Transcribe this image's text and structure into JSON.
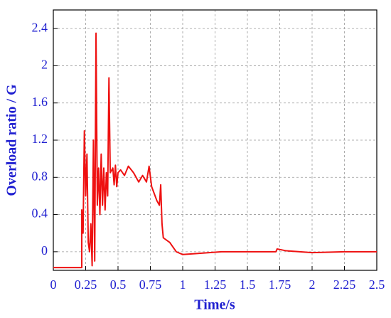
{
  "chart_data": {
    "type": "line",
    "color": "#ee1111",
    "x_label": "Time/s",
    "y_label": "Overload ratio / G",
    "x": [
      0,
      0.22,
      0.22,
      0.23,
      0.24,
      0.25,
      0.26,
      0.27,
      0.28,
      0.29,
      0.3,
      0.31,
      0.32,
      0.33,
      0.34,
      0.35,
      0.36,
      0.37,
      0.38,
      0.39,
      0.4,
      0.41,
      0.42,
      0.43,
      0.44,
      0.46,
      0.47,
      0.48,
      0.49,
      0.5,
      0.52,
      0.55,
      0.58,
      0.62,
      0.66,
      0.69,
      0.72,
      0.74,
      0.76,
      0.8,
      0.82,
      0.83,
      0.84,
      0.85,
      0.9,
      0.95,
      1.0,
      1.1,
      1.3,
      1.5,
      1.72,
      1.73,
      1.8,
      2.0,
      2.25,
      2.5
    ],
    "values": [
      -0.17,
      -0.17,
      0.45,
      0.2,
      1.3,
      0.6,
      1.05,
      0.1,
      0.0,
      0.3,
      -0.15,
      1.2,
      -0.1,
      2.35,
      0.5,
      0.9,
      0.4,
      1.05,
      0.5,
      0.9,
      0.45,
      0.85,
      0.6,
      1.87,
      0.85,
      0.9,
      0.72,
      0.93,
      0.7,
      0.85,
      0.88,
      0.82,
      0.92,
      0.85,
      0.75,
      0.82,
      0.75,
      0.92,
      0.7,
      0.55,
      0.5,
      0.72,
      0.3,
      0.15,
      0.1,
      0.0,
      -0.03,
      -0.02,
      0.0,
      0.0,
      0.0,
      0.03,
      0.01,
      -0.01,
      0.0,
      0.0
    ],
    "xlim": [
      0,
      2.5
    ],
    "xticks": [
      0,
      0.25,
      0.5,
      0.75,
      1,
      1.25,
      1.5,
      1.75,
      2,
      2.25,
      2.5
    ],
    "ylim": [
      -0.2,
      2.6
    ],
    "yticks": [
      0,
      0.4,
      0.8,
      1.2,
      1.6,
      2,
      2.4
    ],
    "grid": true
  }
}
